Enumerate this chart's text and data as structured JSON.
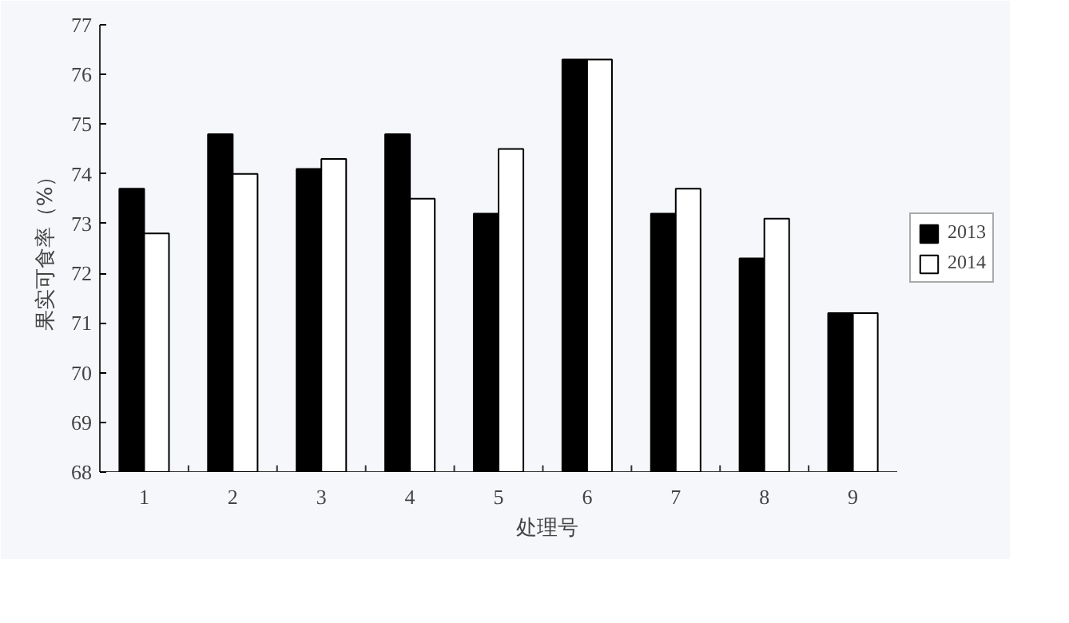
{
  "chart_data": {
    "type": "bar",
    "xlabel": "处理号",
    "ylabel": "果实可食率（%）",
    "categories": [
      "1",
      "2",
      "3",
      "4",
      "5",
      "6",
      "7",
      "8",
      "9"
    ],
    "series": [
      {
        "name": "2013",
        "color": "#000000",
        "values": [
          73.7,
          74.8,
          74.1,
          74.8,
          73.2,
          76.3,
          73.2,
          72.3,
          71.2
        ]
      },
      {
        "name": "2014",
        "color": "#ffffff",
        "values": [
          72.8,
          74.0,
          74.3,
          73.5,
          74.5,
          76.3,
          73.7,
          73.1,
          71.2
        ]
      }
    ],
    "ylim": [
      68,
      77
    ],
    "yticks": [
      68,
      69,
      70,
      71,
      72,
      73,
      74,
      75,
      76,
      77
    ],
    "grid": false,
    "legend": "right"
  }
}
